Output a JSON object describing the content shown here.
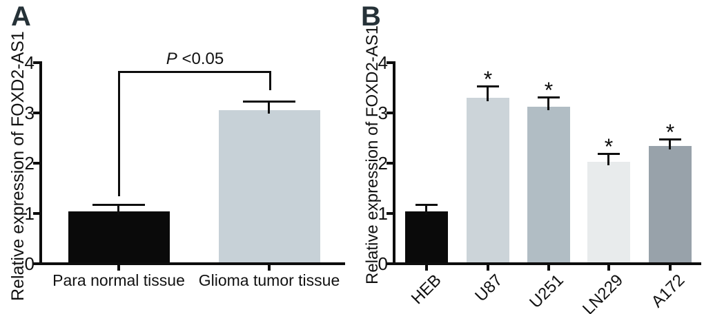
{
  "colors": {
    "background": "#ffffff",
    "axis": "#0d0d0d",
    "text": "#111111",
    "panel_letter": "#263238"
  },
  "chart_data": [
    {
      "type": "bar",
      "panel": "A",
      "ylabel": "Relative expression of FOXD2-AS1",
      "xlabel": "",
      "ylim": [
        0,
        4
      ],
      "yticks": [
        "0",
        "1",
        "2",
        "3",
        "4"
      ],
      "grid": false,
      "legend": "none",
      "categories": [
        "Para normal tissue",
        "Glioma tumor tissue"
      ],
      "values": [
        1.02,
        3.03
      ],
      "errors_plus": [
        0.13,
        0.17
      ],
      "bar_colors": [
        "#0a0a0a",
        "#c7d1d7"
      ],
      "sig_labels": [
        "",
        ""
      ],
      "annotation": {
        "text": "P <0.05",
        "style": "bracket",
        "between": [
          0,
          1
        ]
      }
    },
    {
      "type": "bar",
      "panel": "B",
      "ylabel": "Relative expression of FOXD2-AS1",
      "xlabel": "",
      "ylim": [
        0,
        4
      ],
      "yticks": [
        "0",
        "1",
        "2",
        "3",
        "4"
      ],
      "grid": false,
      "legend": "none",
      "x_label_rotation_deg": -45,
      "categories": [
        "HEB",
        "U87",
        "U251",
        "LN229",
        "A172"
      ],
      "values": [
        1.02,
        3.27,
        3.1,
        2.0,
        2.32
      ],
      "errors_plus": [
        0.13,
        0.23,
        0.19,
        0.17,
        0.13
      ],
      "bar_colors": [
        "#0a0a0a",
        "#ccd4d9",
        "#b1bdc4",
        "#e8ebec",
        "#98a2aa"
      ],
      "sig_labels": [
        "",
        "*",
        "*",
        "*",
        "*"
      ]
    }
  ]
}
